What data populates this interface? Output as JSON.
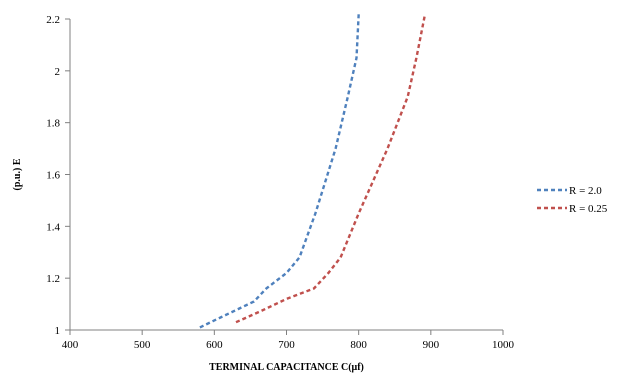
{
  "chart_data": {
    "type": "line",
    "title": "",
    "xlabel": "TERMINAL CAPACITANCE C(μf)",
    "ylabel": "(p.u.) E",
    "xlim": [
      400,
      1000
    ],
    "ylim": [
      1,
      2.2
    ],
    "xticks": [
      400,
      500,
      600,
      700,
      800,
      900,
      1000
    ],
    "yticks": [
      1,
      1.2,
      1.4,
      1.6,
      1.8,
      2,
      2.2
    ],
    "xtick_labels": [
      "400",
      "500",
      "600",
      "700",
      "800",
      "900",
      "1000"
    ],
    "ytick_labels": [
      "1",
      "1.2",
      "1.4",
      "1.6",
      "1.8",
      "2",
      "2.2"
    ],
    "grid": false,
    "legend_position": "right",
    "series": [
      {
        "name": "R = 2.0",
        "color": "#4f81bd",
        "style": "dashed",
        "points": [
          [
            580,
            1.01
          ],
          [
            610,
            1.05
          ],
          [
            655,
            1.11
          ],
          [
            672,
            1.16
          ],
          [
            700,
            1.22
          ],
          [
            718,
            1.28
          ],
          [
            740,
            1.45
          ],
          [
            768,
            1.7
          ],
          [
            785,
            1.9
          ],
          [
            797,
            2.05
          ],
          [
            800,
            2.22
          ]
        ]
      },
      {
        "name": "R = 0.25",
        "color": "#c0504d",
        "style": "dashed",
        "points": [
          [
            630,
            1.03
          ],
          [
            662,
            1.07
          ],
          [
            700,
            1.12
          ],
          [
            738,
            1.16
          ],
          [
            758,
            1.22
          ],
          [
            775,
            1.28
          ],
          [
            800,
            1.45
          ],
          [
            840,
            1.7
          ],
          [
            868,
            1.9
          ],
          [
            880,
            2.05
          ],
          [
            892,
            2.22
          ]
        ]
      }
    ]
  }
}
